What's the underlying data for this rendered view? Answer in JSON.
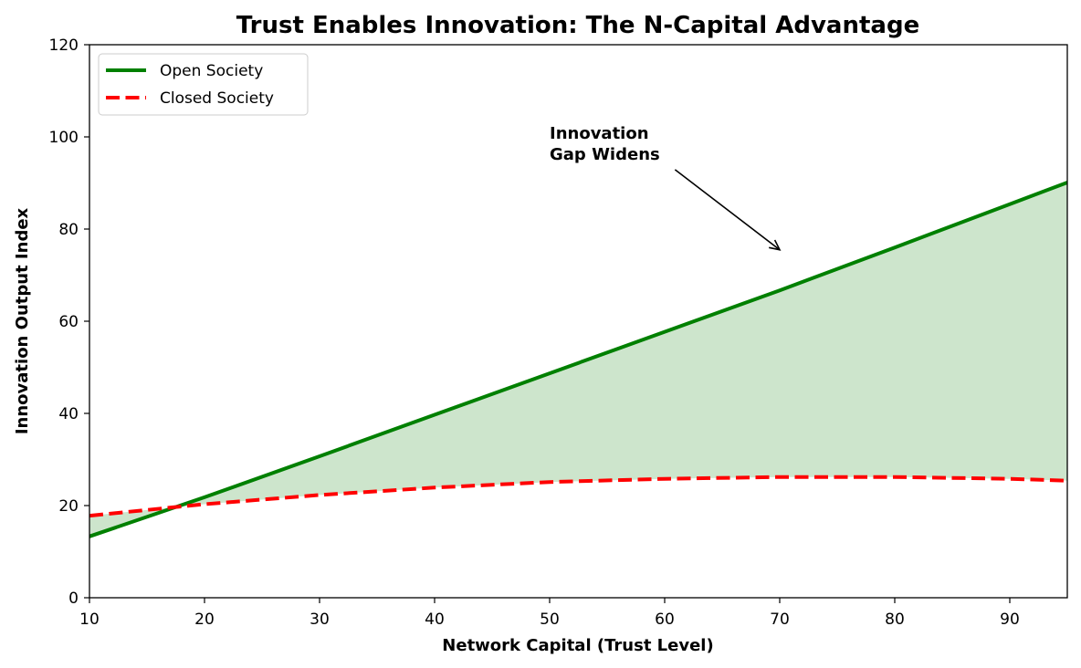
{
  "chart_data": {
    "type": "line",
    "title": "Trust Enables Innovation: The N-Capital Advantage",
    "xlabel": "Network Capital (Trust Level)",
    "ylabel": "Innovation Output Index",
    "xlim": [
      10,
      95
    ],
    "ylim": [
      0,
      120
    ],
    "xticks": [
      10,
      20,
      30,
      40,
      50,
      60,
      70,
      80,
      90
    ],
    "yticks": [
      0,
      20,
      40,
      60,
      80,
      100,
      120
    ],
    "grid": false,
    "legend_position": "top-left",
    "series": [
      {
        "name": "Open Society",
        "color": "#008000",
        "style": "solid",
        "x": [
          10,
          20,
          30,
          40,
          50,
          60,
          70,
          80,
          90,
          95
        ],
        "y": [
          13.3,
          21.8,
          30.7,
          39.7,
          48.7,
          57.7,
          66.7,
          76.0,
          85.4,
          90.1
        ]
      },
      {
        "name": "Closed Society",
        "color": "#ff0000",
        "style": "dashed",
        "x": [
          10,
          20,
          30,
          40,
          50,
          60,
          70,
          80,
          90,
          95
        ],
        "y": [
          17.8,
          20.3,
          22.3,
          23.9,
          25.1,
          25.8,
          26.2,
          26.2,
          25.8,
          25.4
        ]
      }
    ],
    "fill_between": {
      "color": "#cde5cc",
      "between": [
        "Open Society",
        "Closed Society"
      ]
    },
    "annotation": {
      "text_lines": [
        "Innovation",
        "Gap Widens"
      ],
      "text_at": [
        50,
        97
      ],
      "arrow_to": [
        70,
        75.5
      ]
    }
  }
}
